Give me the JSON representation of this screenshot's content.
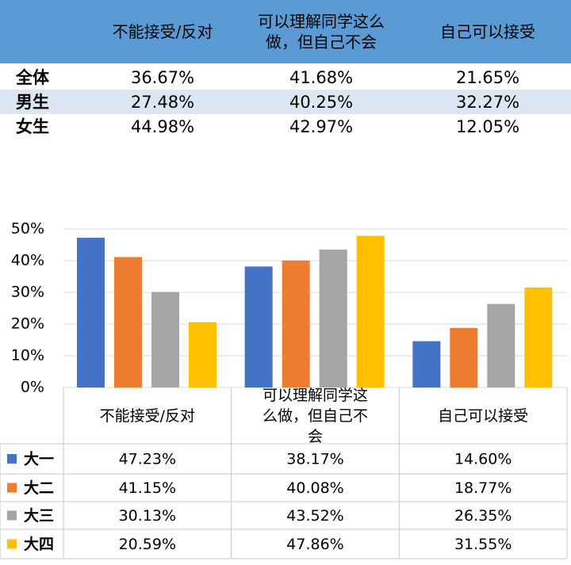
{
  "table": {
    "columns": [
      "不能接受/反对",
      "可以理解同学这么做，但自己不会",
      "自己可以接受"
    ],
    "rows": [
      {
        "label": "全体",
        "cells": [
          "36.67%",
          "41.68%",
          "21.65%"
        ]
      },
      {
        "label": "男生",
        "cells": [
          "27.48%",
          "40.25%",
          "32.27%"
        ]
      },
      {
        "label": "女生",
        "cells": [
          "44.98%",
          "42.97%",
          "12.05%"
        ]
      }
    ]
  },
  "chart_data": {
    "type": "bar",
    "categories": [
      "不能接受/反对",
      "可以理解同学这么做，但自己不会",
      "自己可以接受"
    ],
    "series": [
      {
        "name": "大一",
        "color": "#4472c4",
        "values": [
          47.23,
          38.17,
          14.6
        ],
        "value_labels": [
          "47.23%",
          "38.17%",
          "14.60%"
        ]
      },
      {
        "name": "大二",
        "color": "#ed7d31",
        "values": [
          41.15,
          40.08,
          18.77
        ],
        "value_labels": [
          "41.15%",
          "40.08%",
          "18.77%"
        ]
      },
      {
        "name": "大三",
        "color": "#a5a5a5",
        "values": [
          30.13,
          43.52,
          26.35
        ],
        "value_labels": [
          "30.13%",
          "43.52%",
          "26.35%"
        ]
      },
      {
        "name": "大四",
        "color": "#ffc000",
        "values": [
          20.59,
          47.86,
          31.55
        ],
        "value_labels": [
          "20.59%",
          "47.86%",
          "31.55%"
        ]
      }
    ],
    "ylim": [
      0,
      50
    ],
    "yticks": [
      {
        "value": 0,
        "label": "0%"
      },
      {
        "value": 10,
        "label": "10%"
      },
      {
        "value": 20,
        "label": "20%"
      },
      {
        "value": 30,
        "label": "30%"
      },
      {
        "value": 40,
        "label": "40%"
      },
      {
        "value": 50,
        "label": "50%"
      }
    ],
    "grid": true
  }
}
